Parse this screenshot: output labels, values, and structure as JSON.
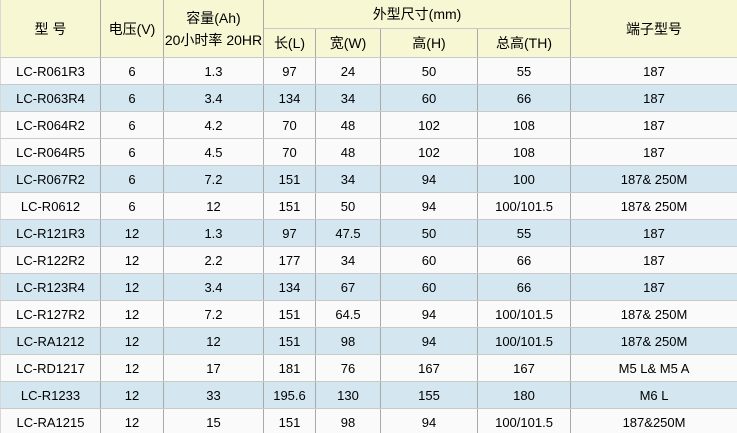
{
  "colors": {
    "header_bg": "#F7F7D4",
    "highlight_row_bg": "#D4E7F1",
    "row_bg": "#FAFAFA",
    "vertical_border": "#A9A9A9",
    "horizontal_border": "#C9C9C9",
    "outer_border": "#D8D8D8",
    "text": "#000000"
  },
  "chart_data": {
    "type": "table",
    "headers": {
      "model": "型 号",
      "voltage": "电压(V)",
      "capacity_line1": "容量(Ah)",
      "capacity_line2": "20小时率 20HR",
      "dimensions_group": "外型尺寸(mm)",
      "length": "长(L)",
      "width": "宽(W)",
      "height": "高(H)",
      "total_height": "总高(TH)",
      "terminal": "端子型号"
    },
    "rows": [
      {
        "model": "LC-R061R3",
        "voltage": "6",
        "capacity": "1.3",
        "length": "97",
        "width": "24",
        "height": "50",
        "total_height": "55",
        "terminal": "187",
        "highlighted": false
      },
      {
        "model": "LC-R063R4",
        "voltage": "6",
        "capacity": "3.4",
        "length": "134",
        "width": "34",
        "height": "60",
        "total_height": "66",
        "terminal": "187",
        "highlighted": true
      },
      {
        "model": "LC-R064R2",
        "voltage": "6",
        "capacity": "4.2",
        "length": "70",
        "width": "48",
        "height": "102",
        "total_height": "108",
        "terminal": "187",
        "highlighted": false
      },
      {
        "model": "LC-R064R5",
        "voltage": "6",
        "capacity": "4.5",
        "length": "70",
        "width": "48",
        "height": "102",
        "total_height": "108",
        "terminal": "187",
        "highlighted": false
      },
      {
        "model": "LC-R067R2",
        "voltage": "6",
        "capacity": "7.2",
        "length": "151",
        "width": "34",
        "height": "94",
        "total_height": "100",
        "terminal": "187& 250M",
        "highlighted": true
      },
      {
        "model": "LC-R0612",
        "voltage": "6",
        "capacity": "12",
        "length": "151",
        "width": "50",
        "height": "94",
        "total_height": "100/101.5",
        "terminal": "187& 250M",
        "highlighted": false
      },
      {
        "model": "LC-R121R3",
        "voltage": "12",
        "capacity": "1.3",
        "length": "97",
        "width": "47.5",
        "height": "50",
        "total_height": "55",
        "terminal": "187",
        "highlighted": true
      },
      {
        "model": "LC-R122R2",
        "voltage": "12",
        "capacity": "2.2",
        "length": "177",
        "width": "34",
        "height": "60",
        "total_height": "66",
        "terminal": "187",
        "highlighted": false
      },
      {
        "model": "LC-R123R4",
        "voltage": "12",
        "capacity": "3.4",
        "length": "134",
        "width": "67",
        "height": "60",
        "total_height": "66",
        "terminal": "187",
        "highlighted": true
      },
      {
        "model": "LC-R127R2",
        "voltage": "12",
        "capacity": "7.2",
        "length": "151",
        "width": "64.5",
        "height": "94",
        "total_height": "100/101.5",
        "terminal": "187& 250M",
        "highlighted": false
      },
      {
        "model": "LC-RA1212",
        "voltage": "12",
        "capacity": "12",
        "length": "151",
        "width": "98",
        "height": "94",
        "total_height": "100/101.5",
        "terminal": "187& 250M",
        "highlighted": true
      },
      {
        "model": "LC-RD1217",
        "voltage": "12",
        "capacity": "17",
        "length": "181",
        "width": "76",
        "height": "167",
        "total_height": "167",
        "terminal": "M5 L& M5 A",
        "highlighted": false
      },
      {
        "model": "LC-R1233",
        "voltage": "12",
        "capacity": "33",
        "length": "195.6",
        "width": "130",
        "height": "155",
        "total_height": "180",
        "terminal": "M6 L",
        "highlighted": true
      },
      {
        "model": "LC-RA1215",
        "voltage": "12",
        "capacity": "15",
        "length": "151",
        "width": "98",
        "height": "94",
        "total_height": "100/101.5",
        "terminal": "187&250M",
        "highlighted": false
      }
    ]
  }
}
